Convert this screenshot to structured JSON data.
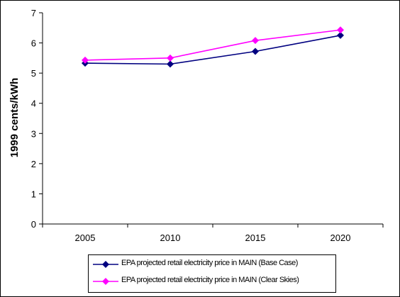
{
  "chart_data": {
    "type": "line",
    "categories": [
      "2005",
      "2010",
      "2015",
      "2020"
    ],
    "ylabel": "1999 cents/kWh",
    "ylim": [
      0,
      7
    ],
    "yticks": [
      0,
      1,
      2,
      3,
      4,
      5,
      6,
      7
    ],
    "grid": false,
    "legend_position": "bottom",
    "series": [
      {
        "name": "EPA projected retail electricity price in MAIN (Base Case)",
        "values": [
          5.33,
          5.3,
          5.72,
          6.25
        ],
        "color": "#000080",
        "marker": "diamond"
      },
      {
        "name": "EPA projected retail electricity price in MAIN (Clear Skies)",
        "values": [
          5.43,
          5.5,
          6.08,
          6.43
        ],
        "color": "#FF00FF",
        "marker": "diamond"
      }
    ]
  }
}
